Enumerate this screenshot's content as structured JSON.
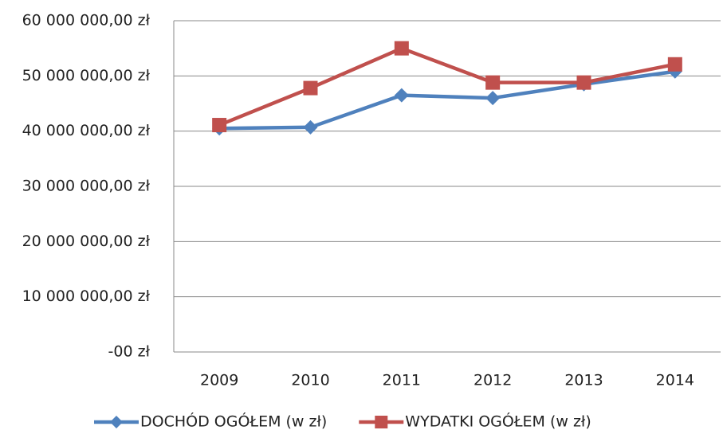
{
  "chart_data": {
    "type": "line",
    "categories": [
      "2009",
      "2010",
      "2011",
      "2012",
      "2013",
      "2014"
    ],
    "series": [
      {
        "name": "DOCHÓD OGÓŁEM (w zł)",
        "color": "#4f81bd",
        "marker": "diamond",
        "values": [
          40500000,
          40700000,
          46500000,
          46000000,
          48500000,
          50800000
        ]
      },
      {
        "name": "WYDATKI OGÓŁEM (w zł)",
        "color": "#c0504d",
        "marker": "square",
        "values": [
          41100000,
          47800000,
          55000000,
          48800000,
          48800000,
          52100000
        ]
      }
    ],
    "ylim": [
      0,
      60000000
    ],
    "yticks": [
      {
        "value": 0,
        "label": "-00 zł"
      },
      {
        "value": 10000000,
        "label": "10 000 000,00 zł"
      },
      {
        "value": 20000000,
        "label": "20 000 000,00 zł"
      },
      {
        "value": 30000000,
        "label": "30 000 000,00 zł"
      },
      {
        "value": 40000000,
        "label": "40 000 000,00 zł"
      },
      {
        "value": 50000000,
        "label": "50 000 000,00 zł"
      },
      {
        "value": 60000000,
        "label": "60 000 000,00 zł"
      }
    ],
    "grid": true,
    "legend": "bottom"
  }
}
